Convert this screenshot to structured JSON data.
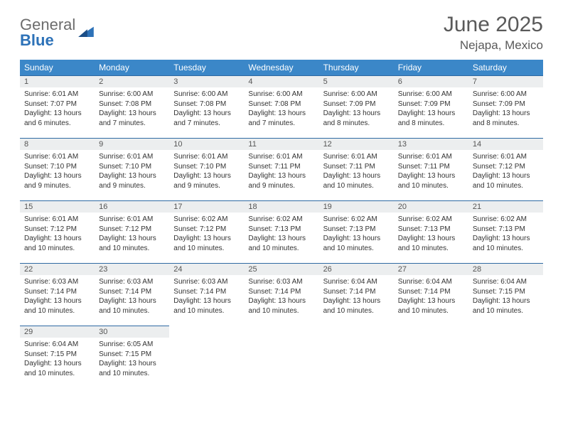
{
  "brand": {
    "part1": "General",
    "part2": "Blue"
  },
  "title": "June 2025",
  "location": "Nejapa, Mexico",
  "dayHeaders": [
    "Sunday",
    "Monday",
    "Tuesday",
    "Wednesday",
    "Thursday",
    "Friday",
    "Saturday"
  ],
  "colors": {
    "headerBg": "#3b87c8",
    "dayNumBg": "#eceeef",
    "ruleLine": "#2f6aa3",
    "textGray": "#5a5a5a"
  },
  "weeks": [
    [
      {
        "n": "1",
        "sr": "6:01 AM",
        "ss": "7:07 PM",
        "dl": "13 hours and 6 minutes."
      },
      {
        "n": "2",
        "sr": "6:00 AM",
        "ss": "7:08 PM",
        "dl": "13 hours and 7 minutes."
      },
      {
        "n": "3",
        "sr": "6:00 AM",
        "ss": "7:08 PM",
        "dl": "13 hours and 7 minutes."
      },
      {
        "n": "4",
        "sr": "6:00 AM",
        "ss": "7:08 PM",
        "dl": "13 hours and 7 minutes."
      },
      {
        "n": "5",
        "sr": "6:00 AM",
        "ss": "7:09 PM",
        "dl": "13 hours and 8 minutes."
      },
      {
        "n": "6",
        "sr": "6:00 AM",
        "ss": "7:09 PM",
        "dl": "13 hours and 8 minutes."
      },
      {
        "n": "7",
        "sr": "6:00 AM",
        "ss": "7:09 PM",
        "dl": "13 hours and 8 minutes."
      }
    ],
    [
      {
        "n": "8",
        "sr": "6:01 AM",
        "ss": "7:10 PM",
        "dl": "13 hours and 9 minutes."
      },
      {
        "n": "9",
        "sr": "6:01 AM",
        "ss": "7:10 PM",
        "dl": "13 hours and 9 minutes."
      },
      {
        "n": "10",
        "sr": "6:01 AM",
        "ss": "7:10 PM",
        "dl": "13 hours and 9 minutes."
      },
      {
        "n": "11",
        "sr": "6:01 AM",
        "ss": "7:11 PM",
        "dl": "13 hours and 9 minutes."
      },
      {
        "n": "12",
        "sr": "6:01 AM",
        "ss": "7:11 PM",
        "dl": "13 hours and 10 minutes."
      },
      {
        "n": "13",
        "sr": "6:01 AM",
        "ss": "7:11 PM",
        "dl": "13 hours and 10 minutes."
      },
      {
        "n": "14",
        "sr": "6:01 AM",
        "ss": "7:12 PM",
        "dl": "13 hours and 10 minutes."
      }
    ],
    [
      {
        "n": "15",
        "sr": "6:01 AM",
        "ss": "7:12 PM",
        "dl": "13 hours and 10 minutes."
      },
      {
        "n": "16",
        "sr": "6:01 AM",
        "ss": "7:12 PM",
        "dl": "13 hours and 10 minutes."
      },
      {
        "n": "17",
        "sr": "6:02 AM",
        "ss": "7:12 PM",
        "dl": "13 hours and 10 minutes."
      },
      {
        "n": "18",
        "sr": "6:02 AM",
        "ss": "7:13 PM",
        "dl": "13 hours and 10 minutes."
      },
      {
        "n": "19",
        "sr": "6:02 AM",
        "ss": "7:13 PM",
        "dl": "13 hours and 10 minutes."
      },
      {
        "n": "20",
        "sr": "6:02 AM",
        "ss": "7:13 PM",
        "dl": "13 hours and 10 minutes."
      },
      {
        "n": "21",
        "sr": "6:02 AM",
        "ss": "7:13 PM",
        "dl": "13 hours and 10 minutes."
      }
    ],
    [
      {
        "n": "22",
        "sr": "6:03 AM",
        "ss": "7:14 PM",
        "dl": "13 hours and 10 minutes."
      },
      {
        "n": "23",
        "sr": "6:03 AM",
        "ss": "7:14 PM",
        "dl": "13 hours and 10 minutes."
      },
      {
        "n": "24",
        "sr": "6:03 AM",
        "ss": "7:14 PM",
        "dl": "13 hours and 10 minutes."
      },
      {
        "n": "25",
        "sr": "6:03 AM",
        "ss": "7:14 PM",
        "dl": "13 hours and 10 minutes."
      },
      {
        "n": "26",
        "sr": "6:04 AM",
        "ss": "7:14 PM",
        "dl": "13 hours and 10 minutes."
      },
      {
        "n": "27",
        "sr": "6:04 AM",
        "ss": "7:14 PM",
        "dl": "13 hours and 10 minutes."
      },
      {
        "n": "28",
        "sr": "6:04 AM",
        "ss": "7:15 PM",
        "dl": "13 hours and 10 minutes."
      }
    ],
    [
      {
        "n": "29",
        "sr": "6:04 AM",
        "ss": "7:15 PM",
        "dl": "13 hours and 10 minutes."
      },
      {
        "n": "30",
        "sr": "6:05 AM",
        "ss": "7:15 PM",
        "dl": "13 hours and 10 minutes."
      },
      null,
      null,
      null,
      null,
      null
    ]
  ]
}
